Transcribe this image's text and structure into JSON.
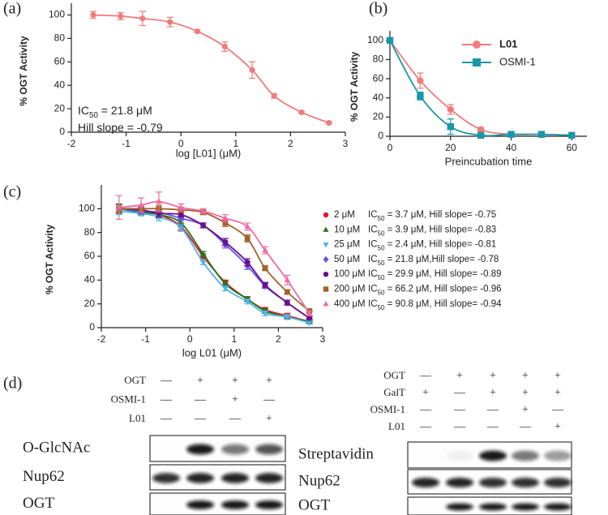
{
  "chart_data": [
    {
      "type": "line",
      "panel": "(a)",
      "x_label": "log [L01] (μM)",
      "y_label": "% OGT Activity",
      "x": [
        -1.6,
        -1.1,
        -0.7,
        -0.2,
        0.3,
        0.8,
        1.3,
        1.7,
        2.2,
        2.7
      ],
      "series": [
        {
          "color": "#f07c7c",
          "marker": "circle",
          "values": [
            100,
            99,
            97,
            94,
            86,
            73,
            53,
            31,
            17,
            8
          ],
          "errors": [
            3,
            3,
            6,
            4,
            1,
            4,
            7,
            2,
            1,
            1
          ]
        }
      ],
      "annotations": [
        [
          "IC",
          "50",
          " = 21.8 μM"
        ],
        [
          "Hill slope = -0.79"
        ]
      ],
      "xlim": [
        -2,
        3
      ],
      "xticks": [
        -2,
        -1,
        0,
        1,
        2,
        3
      ],
      "ylim": [
        0,
        110
      ],
      "yticks": [
        0,
        20,
        40,
        60,
        80,
        100
      ]
    },
    {
      "type": "line",
      "panel": "(b)",
      "x_label": "Preincubation time",
      "y_label": "% OGT Activity",
      "x": [
        0,
        10,
        20,
        30,
        40,
        50,
        60
      ],
      "series": [
        {
          "name": "L01",
          "color": "#f07c7c",
          "marker": "circle",
          "values": [
            100,
            58,
            28,
            7,
            2,
            2,
            1
          ],
          "errors": [
            2,
            8,
            5,
            2,
            1,
            1,
            1
          ]
        },
        {
          "name": "OSMI-1",
          "color": "#1897a8",
          "marker": "square",
          "values": [
            100,
            42,
            10,
            1,
            2,
            2,
            1
          ],
          "errors": [
            2,
            4,
            8,
            1,
            1,
            3,
            1
          ]
        }
      ],
      "legend": "upper right",
      "xlim": [
        0,
        65
      ],
      "xticks": [
        0,
        20,
        40,
        60
      ],
      "ylim": [
        0,
        110
      ],
      "yticks": [
        0,
        20,
        40,
        60,
        80,
        100
      ]
    },
    {
      "type": "line",
      "panel": "(c)",
      "x_label": "log L01 (μM)",
      "y_label": "% OGT Activity",
      "x": [
        -1.6,
        -1.1,
        -0.7,
        -0.2,
        0.3,
        0.8,
        1.3,
        1.7,
        2.2,
        2.7
      ],
      "series": [
        {
          "name": "2 μM",
          "color": "#e8141c",
          "marker": "circle",
          "values": [
            100,
            98,
            95,
            85,
            60,
            38,
            24,
            15,
            10,
            5
          ],
          "errors": [
            3,
            2,
            3,
            3,
            2,
            2,
            2,
            2,
            2,
            1
          ],
          "annotation": [
            "IC",
            "50",
            " = 3.7 μM, Hill slope= -0.75"
          ]
        },
        {
          "name": "10 μM",
          "color": "#1e7a1e",
          "marker": "triangle-up",
          "values": [
            100,
            97,
            95,
            88,
            62,
            37,
            24,
            14,
            9,
            5
          ],
          "errors": [
            4,
            2,
            3,
            3,
            2,
            2,
            2,
            2,
            2,
            1
          ],
          "annotation": [
            "IC",
            "50",
            " = 3.9 μM, Hill slope= -0.83"
          ]
        },
        {
          "name": "25 μM",
          "color": "#4fb3e8",
          "marker": "triangle-down",
          "values": [
            98,
            96,
            93,
            84,
            55,
            33,
            22,
            12,
            9,
            4
          ],
          "errors": [
            3,
            2,
            3,
            3,
            2,
            2,
            2,
            2,
            2,
            1
          ],
          "annotation": [
            "IC",
            "50",
            " = 2.4 μM, Hill slope= -0.81"
          ]
        },
        {
          "name": "50 μM",
          "color": "#6655ee",
          "marker": "diamond",
          "values": [
            100,
            98,
            97,
            92,
            86,
            70,
            52,
            35,
            21,
            8
          ],
          "errors": [
            3,
            2,
            3,
            2,
            2,
            3,
            3,
            2,
            2,
            1
          ],
          "annotation": [
            "IC",
            "50",
            " = 21.8 μM,Hill slope= -0.78"
          ]
        },
        {
          "name": "100 μM",
          "color": "#6a0f8e",
          "marker": "circle",
          "values": [
            100,
            99,
            96,
            95,
            86,
            72,
            55,
            36,
            21,
            8
          ],
          "errors": [
            3,
            2,
            3,
            2,
            2,
            3,
            3,
            2,
            2,
            1
          ],
          "annotation": [
            "IC",
            "50",
            " = 29.9 μM, Hill slope= -0.89"
          ]
        },
        {
          "name": "200 μM",
          "color": "#a0632a",
          "marker": "square",
          "values": [
            100,
            100,
            100,
            99,
            97,
            88,
            75,
            50,
            30,
            14
          ],
          "errors": [
            3,
            2,
            3,
            2,
            2,
            3,
            3,
            2,
            2,
            1
          ],
          "annotation": [
            "IC",
            "50",
            " = 66.2 μM, Hill slope= -0.96"
          ]
        },
        {
          "name": "400 μM",
          "color": "#f06aa0",
          "marker": "triangle-up",
          "values": [
            101,
            103,
            106,
            101,
            98,
            92,
            85,
            65,
            40,
            12
          ],
          "errors": [
            10,
            6,
            8,
            3,
            2,
            3,
            3,
            3,
            4,
            2
          ],
          "annotation": [
            "IC",
            "50",
            " = 90.8 μM, Hill slope= -0.94"
          ]
        }
      ],
      "legend": "right",
      "xlim": [
        -2,
        3
      ],
      "xticks": [
        -2,
        -1,
        0,
        1,
        2,
        3
      ],
      "ylim": [
        0,
        120
      ],
      "yticks": [
        0,
        20,
        40,
        60,
        80,
        100
      ]
    }
  ],
  "blots": {
    "panel": "(d)",
    "left": {
      "conditions": [
        {
          "label": "OGT",
          "marks": [
            "—",
            "+",
            "+",
            "+"
          ]
        },
        {
          "label": "OSMI-1",
          "marks": [
            "—",
            "—",
            "+",
            "—"
          ]
        },
        {
          "label": "L01",
          "marks": [
            "—",
            "—",
            "—",
            "+"
          ]
        }
      ],
      "rows": [
        "O-GlcNAc",
        "Nup62",
        "OGT"
      ]
    },
    "right": {
      "conditions": [
        {
          "label": "OGT",
          "marks": [
            "—",
            "+",
            "+",
            "+",
            "+"
          ]
        },
        {
          "label": "GalT",
          "marks": [
            "+",
            "—",
            "+",
            "+",
            "+"
          ]
        },
        {
          "label": "OSMI-1",
          "marks": [
            "—",
            "—",
            "—",
            "+",
            "—"
          ]
        },
        {
          "label": "L01",
          "marks": [
            "—",
            "—",
            "—",
            "—",
            "+"
          ]
        }
      ],
      "rows": [
        "Streptavidin",
        "Nup62",
        "OGT"
      ]
    }
  }
}
